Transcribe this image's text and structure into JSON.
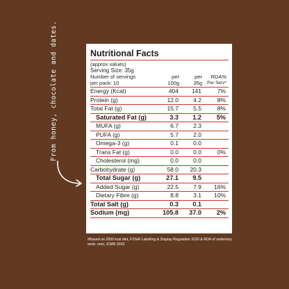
{
  "side_note": "From honey, chocolate and dates.",
  "label": {
    "title": "Nutritional Facts",
    "approx": "(approx values)",
    "serving_size": "Serving Size: 35g",
    "servings_line1": "Number of servings",
    "servings_line2": "per pack: 10",
    "col_100g_1": "per",
    "col_100g_2": "100g",
    "col_35g_1": "per",
    "col_35g_2": "35g",
    "col_rda_1": "RDA%",
    "col_rda_2": "Per Serv*",
    "rows": [
      {
        "label": "Energy (Kcal)",
        "per100": "404",
        "per35": "141",
        "rda": "7%"
      },
      {
        "label": "Protein (g)",
        "per100": "12.0",
        "per35": "4.2",
        "rda": "8%"
      },
      {
        "label": "Total Fat (g)",
        "per100": "15.7",
        "per35": "5.5",
        "rda": "8%"
      },
      {
        "label": "Saturated Fat (g)",
        "per100": "3.3",
        "per35": "1.2",
        "rda": "5%"
      },
      {
        "label": "MUFA (g)",
        "per100": "6.7",
        "per35": "2.3",
        "rda": ""
      },
      {
        "label": "PUFA (g)",
        "per100": "5.7",
        "per35": "2.0",
        "rda": ""
      },
      {
        "label": "Omega-3 (g)",
        "per100": "0.1",
        "per35": "0.0",
        "rda": ""
      },
      {
        "label": "Trans Fat (g)",
        "per100": "0.0",
        "per35": "0.0",
        "rda": "0%"
      },
      {
        "label": "Cholesterol (mg)",
        "per100": "0.0",
        "per35": "0.0",
        "rda": ""
      },
      {
        "label": "Carbohydrate (g)",
        "per100": "58.0",
        "per35": "20.3",
        "rda": ""
      },
      {
        "label": "Total Sugar (g)",
        "per100": "27.1",
        "per35": "9.5",
        "rda": ""
      },
      {
        "label": "Added Sugar (g)",
        "per100": "22.5",
        "per35": "7.9",
        "rda": "16%"
      },
      {
        "label": "Dietary Fibre (g)",
        "per100": "8.8",
        "per35": "3.1",
        "rda": "10%"
      },
      {
        "label": "Total Salt (g)",
        "per100": "0.3",
        "per35": "0.1",
        "rda": ""
      },
      {
        "label": "Sodium (mg)",
        "per100": "105.8",
        "per35": "37.0",
        "rda": "2%"
      }
    ]
  },
  "footer": "#Based on 2000 kcal diet, FSSAI Labelling & Display Regulation 2020 & RDA of sedentary work- men, ICMR 2020",
  "colors": {
    "background": "#623a22",
    "rule": "#c9342b",
    "panel": "#ffffff"
  }
}
